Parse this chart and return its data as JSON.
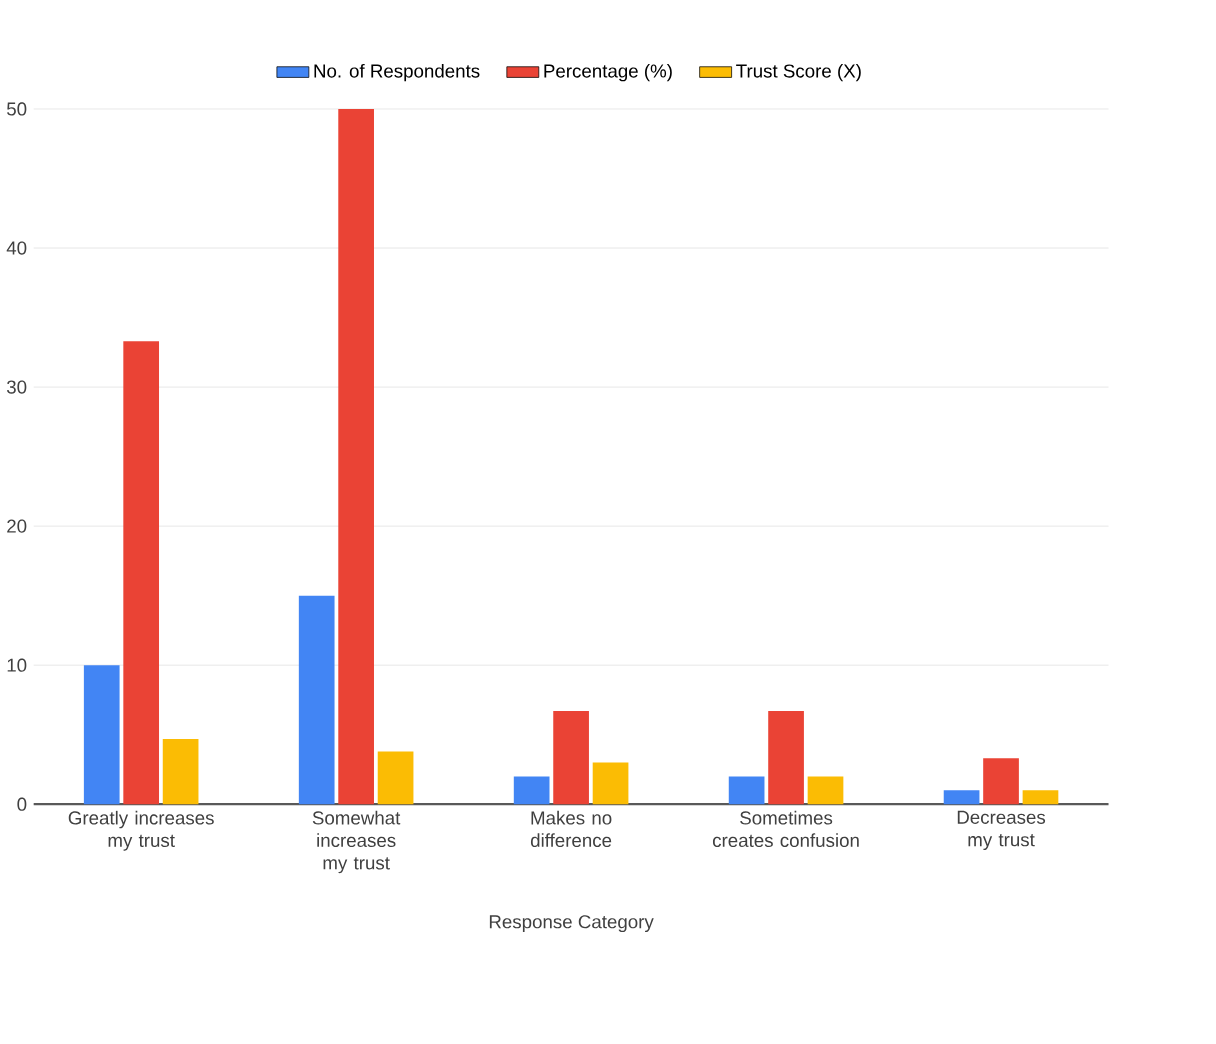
{
  "chart_data": {
    "type": "bar",
    "xlabel": "Response Category",
    "categories": [
      "Greatly increases my trust",
      "Somewhat increases my trust",
      "Makes no difference",
      "Sometimes creates confusion",
      "Decreases my trust"
    ],
    "series": [
      {
        "name": "No. of Respondents",
        "color": "#4285f4",
        "values": [
          10,
          15,
          2,
          2,
          1
        ]
      },
      {
        "name": "Percentage (%)",
        "color": "#ea4335",
        "values": [
          33.3,
          50,
          6.7,
          6.7,
          3.3
        ]
      },
      {
        "name": "Trust Score (X)",
        "color": "#fbbc04",
        "values": [
          4.7,
          3.8,
          3,
          2,
          1
        ]
      }
    ],
    "ylim": [
      0,
      50
    ],
    "yticks": [
      0,
      10,
      20,
      30,
      40,
      50
    ],
    "grid": "y",
    "legend": "top"
  }
}
